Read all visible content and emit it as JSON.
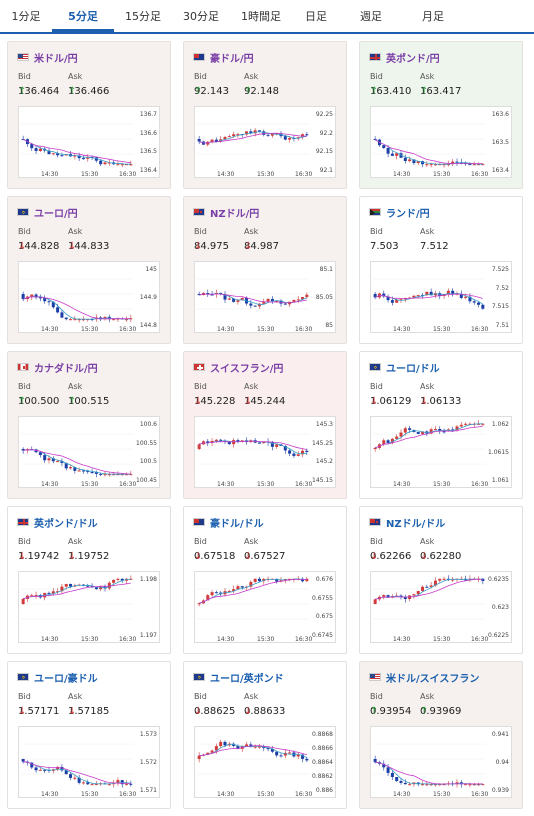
{
  "tabs": [
    "1分足",
    "5分足",
    "15分足",
    "30分足",
    "1時間足",
    "日足",
    "週足",
    "月足"
  ],
  "active_tab": 1,
  "labels": {
    "bid": "Bid",
    "ask": "Ask",
    "time1": "14:30",
    "time2": "15:30",
    "time3": "16:30"
  },
  "cards": [
    {
      "name": "米ドル/円",
      "style": "purple",
      "bg": "#f6f1ee",
      "flag": "us",
      "bid_dir": "up",
      "bid": "136.464",
      "ask_dir": "up",
      "ask": "136.466",
      "yticks": [
        "136.7",
        "136.6",
        "136.5",
        "136.4"
      ],
      "trend": "down"
    },
    {
      "name": "豪ドル/円",
      "style": "purple",
      "bg": "#f6f1ee",
      "flag": "au",
      "bid_dir": "up",
      "bid": "92.143",
      "ask_dir": "up",
      "ask": "92.148",
      "yticks": [
        "92.25",
        "92.2",
        "92.15",
        "92.1"
      ],
      "trend": "flat"
    },
    {
      "name": "英ポンド/円",
      "style": "purple",
      "bg": "#eef5ec",
      "flag": "gb",
      "bid_dir": "up",
      "bid": "163.410",
      "ask_dir": "up",
      "ask": "163.417",
      "yticks": [
        "163.6",
        "163.5",
        "163.4"
      ],
      "trend": "down"
    },
    {
      "name": "ユーロ/円",
      "style": "purple",
      "bg": "#f6f1ee",
      "flag": "eu",
      "bid_dir": "dn",
      "bid": "144.828",
      "ask_dir": "dn",
      "ask": "144.833",
      "yticks": [
        "145",
        "144.9",
        "144.8"
      ],
      "trend": "down"
    },
    {
      "name": "NZドル/円",
      "style": "purple",
      "bg": "#f6f1ee",
      "flag": "nz",
      "bid_dir": "dn",
      "bid": "84.975",
      "ask_dir": "dn",
      "ask": "84.987",
      "yticks": [
        "85.1",
        "85.05",
        "85"
      ],
      "trend": "down"
    },
    {
      "name": "ランド/円",
      "style": "blue",
      "bg": "#ffffff",
      "flag": "za",
      "bid_dir": "",
      "bid": "7.503",
      "ask_dir": "",
      "ask": "7.512",
      "yticks": [
        "7.525",
        "7.52",
        "7.515",
        "7.51"
      ],
      "trend": "flat"
    },
    {
      "name": "カナダドル/円",
      "style": "purple",
      "bg": "#f6f1ee",
      "flag": "ca",
      "bid_dir": "up",
      "bid": "100.500",
      "ask_dir": "up",
      "ask": "100.515",
      "yticks": [
        "100.6",
        "100.55",
        "100.5",
        "100.45"
      ],
      "trend": "down"
    },
    {
      "name": "スイスフラン/円",
      "style": "purple",
      "bg": "#faeeee",
      "flag": "ch",
      "bid_dir": "dn",
      "bid": "145.228",
      "ask_dir": "dn",
      "ask": "145.244",
      "yticks": [
        "145.3",
        "145.25",
        "145.2",
        "145.15"
      ],
      "trend": "flat"
    },
    {
      "name": "ユーロ/ドル",
      "style": "blue",
      "bg": "#ffffff",
      "flag": "eu",
      "bid_dir": "dn",
      "bid": "1.06129",
      "ask_dir": "dn",
      "ask": "1.06133",
      "yticks": [
        "1.062",
        "1.0615",
        "1.061"
      ],
      "trend": "up"
    },
    {
      "name": "英ポンド/ドル",
      "style": "blue",
      "bg": "#ffffff",
      "flag": "gb",
      "bid_dir": "dn",
      "bid": "1.19742",
      "ask_dir": "dn",
      "ask": "1.19752",
      "yticks": [
        "1.198",
        "1.197"
      ],
      "trend": "up"
    },
    {
      "name": "豪ドル/ドル",
      "style": "blue",
      "bg": "#ffffff",
      "flag": "au",
      "bid_dir": "dn",
      "bid": "0.67518",
      "ask_dir": "dn",
      "ask": "0.67527",
      "yticks": [
        "0.676",
        "0.6755",
        "0.675",
        "0.6745"
      ],
      "trend": "up"
    },
    {
      "name": "NZドル/ドル",
      "style": "blue",
      "bg": "#ffffff",
      "flag": "nz",
      "bid_dir": "dn",
      "bid": "0.62266",
      "ask_dir": "dn",
      "ask": "0.62280",
      "yticks": [
        "0.6235",
        "0.623",
        "0.6225"
      ],
      "trend": "up"
    },
    {
      "name": "ユーロ/豪ドル",
      "style": "blue",
      "bg": "#ffffff",
      "flag": "eu",
      "bid_dir": "dn",
      "bid": "1.57171",
      "ask_dir": "dn",
      "ask": "1.57185",
      "yticks": [
        "1.573",
        "1.572",
        "1.571"
      ],
      "trend": "down"
    },
    {
      "name": "ユーロ/英ポンド",
      "style": "blue",
      "bg": "#ffffff",
      "flag": "eu",
      "bid_dir": "dn",
      "bid": "0.88625",
      "ask_dir": "dn",
      "ask": "0.88633",
      "yticks": [
        "0.8868",
        "0.8866",
        "0.8864",
        "0.8862",
        "0.886"
      ],
      "trend": "flat"
    },
    {
      "name": "米ドル/スイスフラン",
      "style": "blue",
      "bg": "#f6f1ee",
      "flag": "us",
      "bid_dir": "up",
      "bid": "0.93954",
      "ask_dir": "up",
      "ask": "0.93969",
      "yticks": [
        "0.941",
        "0.94",
        "0.939"
      ],
      "trend": "down"
    }
  ]
}
